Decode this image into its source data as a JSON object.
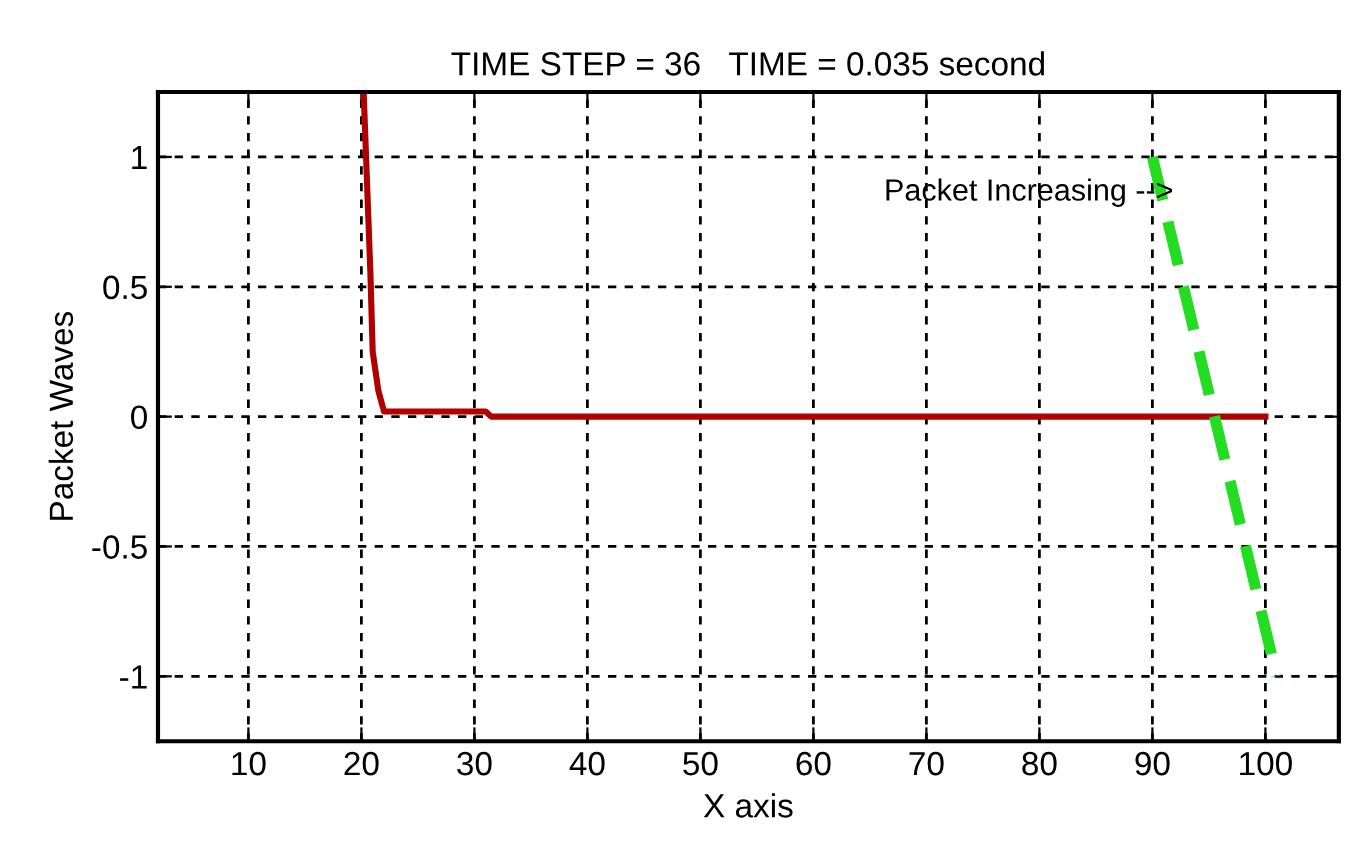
{
  "chart_data": {
    "type": "line",
    "title": "TIME STEP = 36   TIME = 0.035 second",
    "xlabel": "X axis",
    "ylabel": "Packet Waves",
    "xlim": [
      2,
      106.5
    ],
    "xticks": [
      10,
      20,
      30,
      40,
      50,
      60,
      70,
      80,
      90,
      100
    ],
    "ylim": [
      -1.25,
      1.25
    ],
    "yticks": [
      -1,
      -0.5,
      0,
      0.5,
      1
    ],
    "grid": true,
    "series": [
      {
        "color": "#b00000",
        "line_style": "solid",
        "x": [
          20.2,
          20.5,
          20.8,
          21.0,
          21.5,
          22.0,
          31.0,
          31.5,
          100
        ],
        "values": [
          1.25,
          0.9,
          0.55,
          0.25,
          0.1,
          0.02,
          0.02,
          0.0,
          0.0
        ]
      },
      {
        "color": "#22dd22",
        "line_style": "dashed",
        "x": [
          90,
          101
        ],
        "values": [
          1,
          -1
        ]
      }
    ],
    "annotations": [
      "Packet Increasing -->"
    ]
  }
}
